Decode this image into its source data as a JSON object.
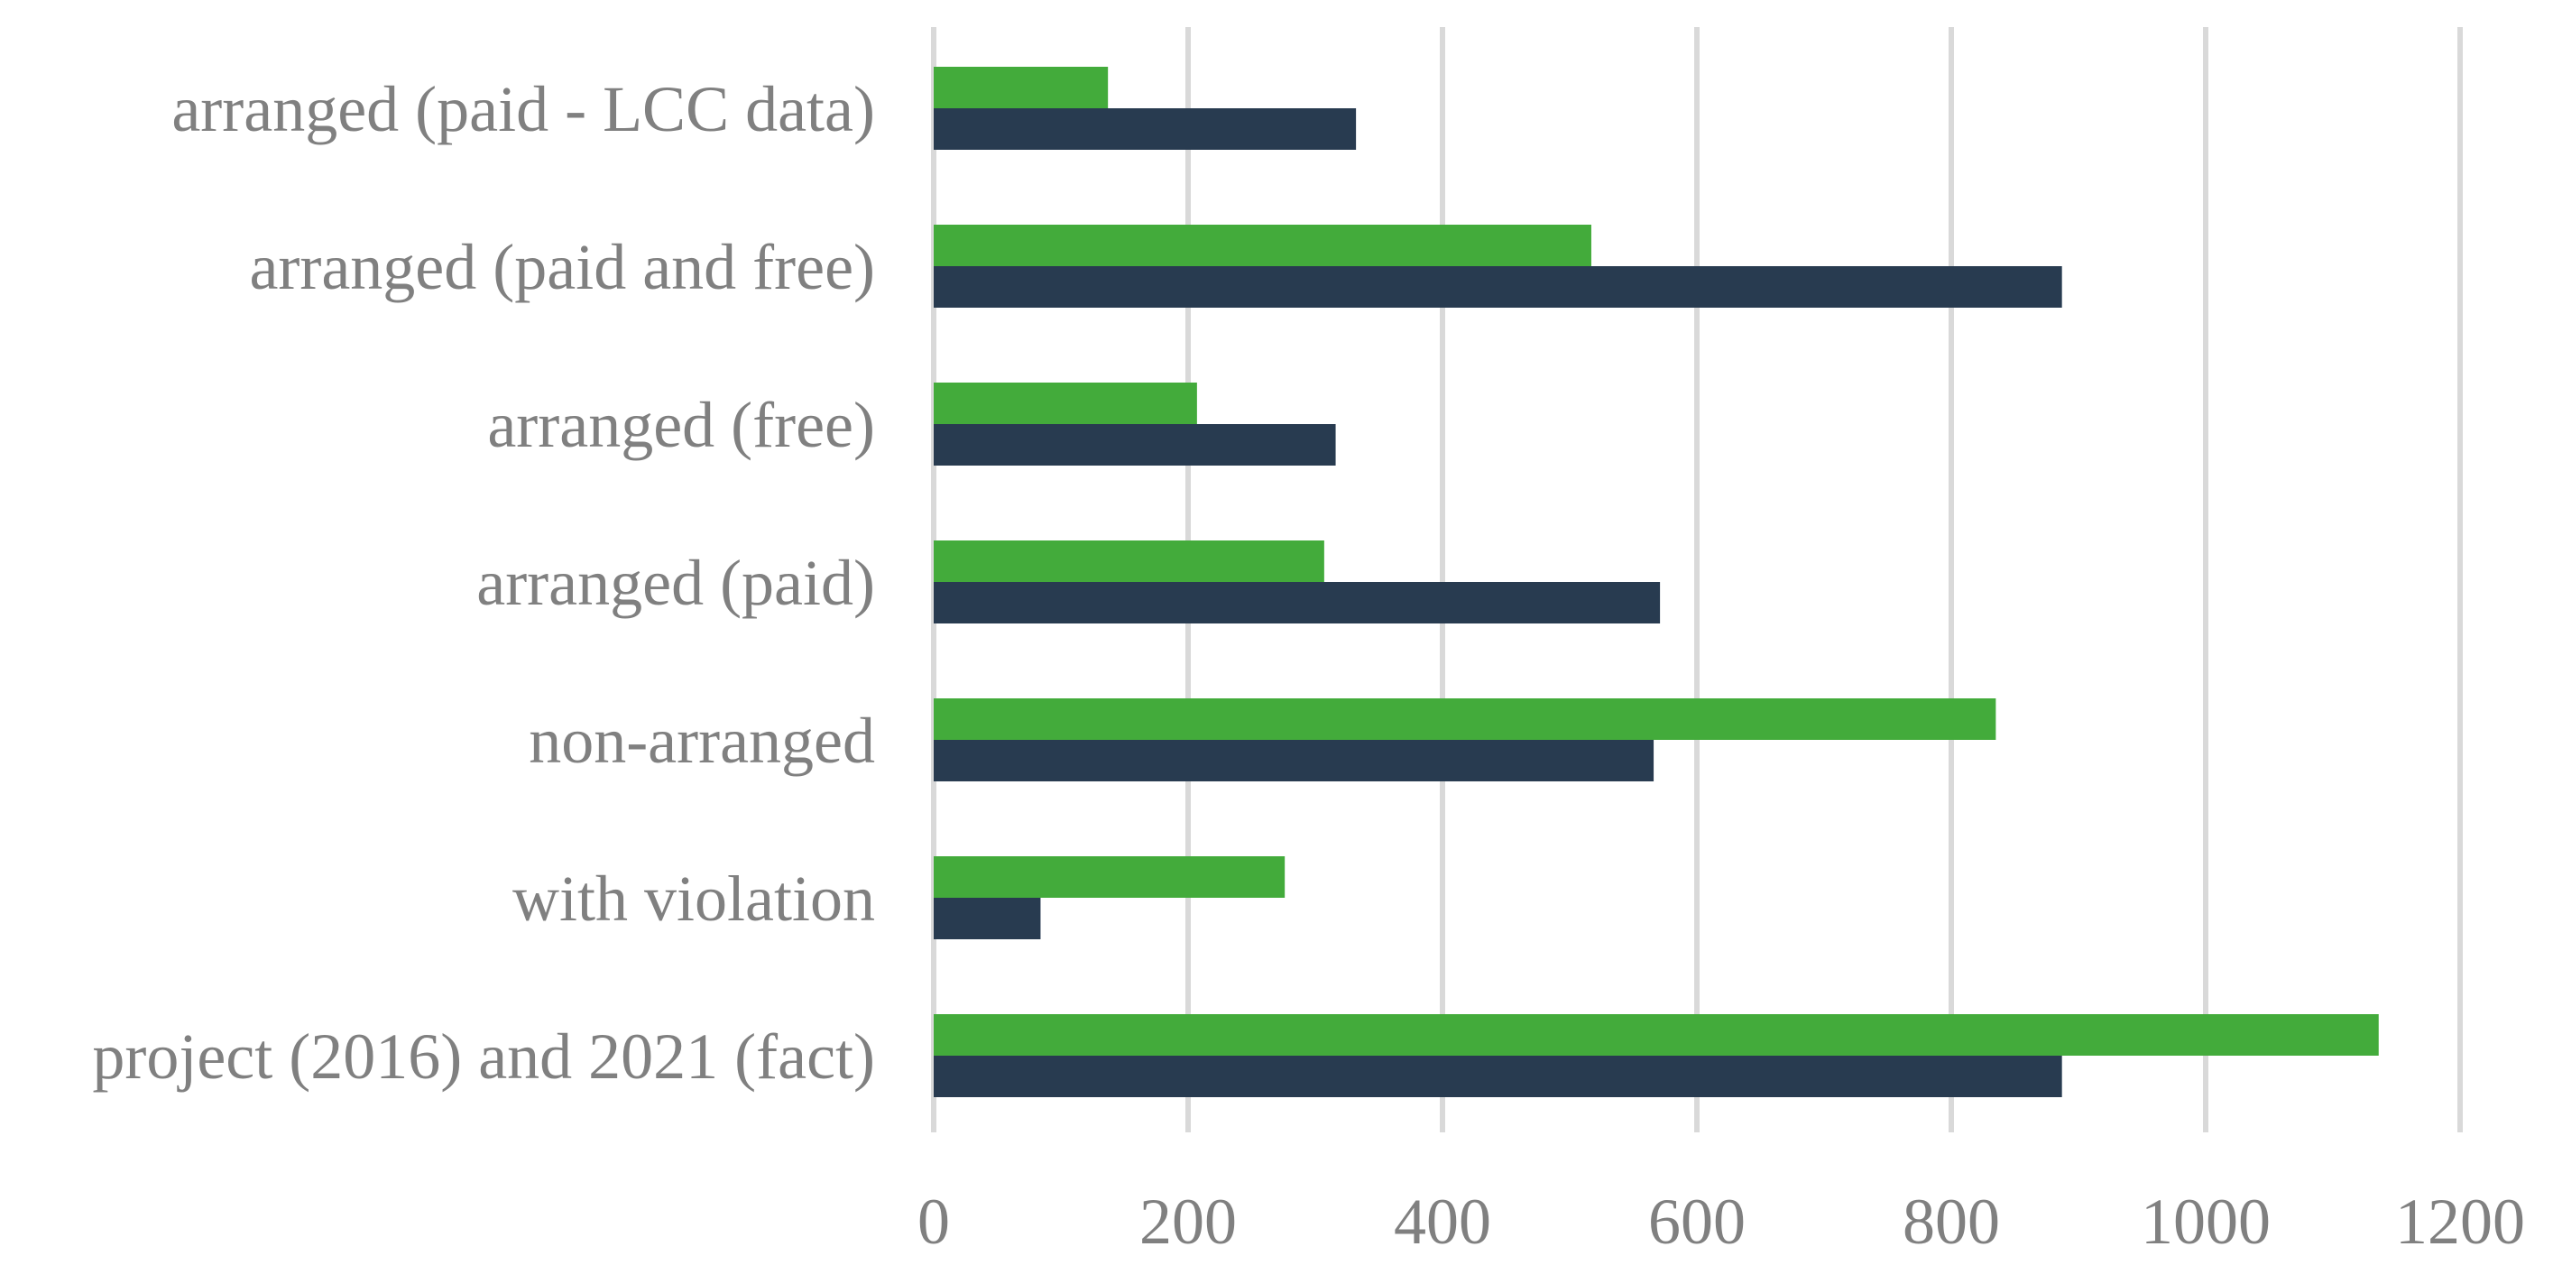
{
  "chart_data": {
    "type": "bar",
    "orientation": "horizontal",
    "categories": [
      "arranged (paid - LCC data)",
      "arranged (paid and free)",
      "arranged (free)",
      "arranged (paid)",
      "non-arranged",
      "with violation",
      "project (2016) and 2021 (fact)"
    ],
    "series": [
      {
        "color": "#43ab3b",
        "values": [
          137,
          517,
          207,
          307,
          835,
          276,
          1136
        ]
      },
      {
        "color": "#283b50",
        "values": [
          332,
          887,
          316,
          571,
          566,
          84,
          887
        ]
      }
    ],
    "xlim": [
      0,
      1200
    ],
    "xticks": [
      "0",
      "200",
      "400",
      "600",
      "800",
      "1000",
      "1200"
    ],
    "grid": true,
    "gridline_color": "#d9d9d9",
    "label_color": "#808080",
    "title": "",
    "xlabel": "",
    "ylabel": ""
  }
}
